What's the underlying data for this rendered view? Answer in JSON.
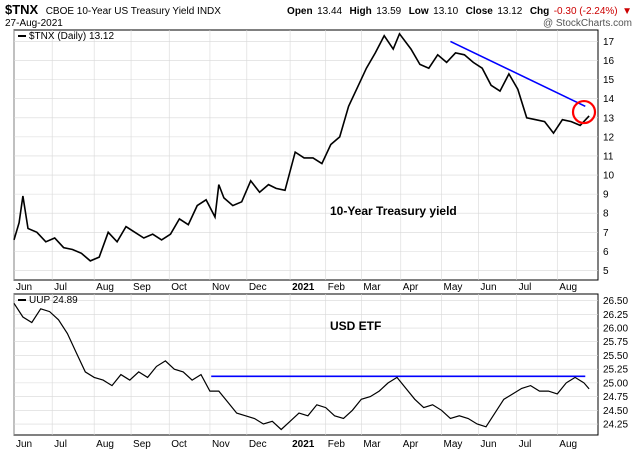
{
  "header": {
    "symbol": "$TNX",
    "name": "CBOE 10-Year US Treasury Yield INDX",
    "date": "27-Aug-2021",
    "watermark": "@ StockCharts.com",
    "open_label": "Open",
    "open_value": "13.44",
    "high_label": "High",
    "high_value": "13.59",
    "low_label": "Low",
    "low_value": "13.10",
    "close_label": "Close",
    "close_value": "13.12",
    "chg_label": "Chg",
    "chg_value": "-0.30 (-2.24%)",
    "chg_arrow": "▼",
    "chg_color": "#cc0000"
  },
  "chart_data": [
    {
      "type": "line",
      "legend": "$TNX (Daily) 13.12",
      "annotation": "10-Year Treasury yield",
      "x_ticks": [
        "Jun",
        "Jul",
        "Aug",
        "Sep",
        "Oct",
        "Nov",
        "Dec",
        "2021",
        "Feb",
        "Mar",
        "Apr",
        "May",
        "Jun",
        "Jul",
        "Aug"
      ],
      "y_ticks": [
        5,
        6,
        7,
        8,
        9,
        10,
        11,
        12,
        13,
        14,
        15,
        16,
        17
      ],
      "ylim": [
        4.5,
        17.6
      ],
      "series": [
        {
          "color": "#000000",
          "x": [
            "2020-06-01",
            "2020-06-05",
            "2020-06-08",
            "2020-06-12",
            "2020-06-19",
            "2020-06-26",
            "2020-07-03",
            "2020-07-10",
            "2020-07-17",
            "2020-07-24",
            "2020-07-31",
            "2020-08-07",
            "2020-08-14",
            "2020-08-21",
            "2020-08-28",
            "2020-09-04",
            "2020-09-11",
            "2020-09-18",
            "2020-09-25",
            "2020-10-02",
            "2020-10-09",
            "2020-10-16",
            "2020-10-23",
            "2020-10-30",
            "2020-11-06",
            "2020-11-09",
            "2020-11-13",
            "2020-11-20",
            "2020-11-27",
            "2020-12-04",
            "2020-12-11",
            "2020-12-18",
            "2020-12-24",
            "2020-12-31",
            "2021-01-08",
            "2021-01-15",
            "2021-01-22",
            "2021-01-29",
            "2021-02-05",
            "2021-02-12",
            "2021-02-19",
            "2021-02-26",
            "2021-03-05",
            "2021-03-12",
            "2021-03-19",
            "2021-03-26",
            "2021-03-31",
            "2021-04-09",
            "2021-04-16",
            "2021-04-23",
            "2021-04-30",
            "2021-05-07",
            "2021-05-14",
            "2021-05-21",
            "2021-05-28",
            "2021-06-04",
            "2021-06-11",
            "2021-06-18",
            "2021-06-25",
            "2021-07-02",
            "2021-07-09",
            "2021-07-16",
            "2021-07-23",
            "2021-07-30",
            "2021-08-06",
            "2021-08-13",
            "2021-08-20",
            "2021-08-27"
          ],
          "y": [
            6.6,
            7.5,
            8.9,
            7.2,
            7.0,
            6.5,
            6.7,
            6.2,
            6.1,
            5.9,
            5.5,
            5.7,
            7.0,
            6.5,
            7.3,
            7.0,
            6.7,
            6.9,
            6.6,
            6.9,
            7.7,
            7.4,
            8.4,
            8.7,
            7.8,
            9.5,
            8.8,
            8.4,
            8.6,
            9.7,
            9.1,
            9.5,
            9.3,
            9.2,
            11.2,
            10.9,
            10.9,
            10.6,
            11.6,
            12.0,
            13.6,
            14.6,
            15.6,
            16.4,
            17.3,
            16.6,
            17.4,
            16.6,
            15.8,
            15.6,
            16.3,
            15.9,
            16.4,
            16.3,
            15.9,
            15.6,
            14.7,
            14.4,
            15.3,
            14.5,
            13.0,
            12.9,
            12.8,
            12.2,
            12.9,
            12.8,
            12.6,
            13.1
          ]
        }
      ],
      "trendline": {
        "color": "#0000ff",
        "x": [
          "2021-05-10",
          "2021-08-24"
        ],
        "y": [
          17.0,
          13.6
        ]
      },
      "highlight": {
        "color": "#ff0000",
        "x": "2021-08-23",
        "y": 13.3
      }
    },
    {
      "type": "line",
      "legend": "UUP 24.89",
      "annotation": "USD ETF",
      "x_ticks": [
        "Jun",
        "Jul",
        "Aug",
        "Sep",
        "Oct",
        "Nov",
        "Dec",
        "2021",
        "Feb",
        "Mar",
        "Apr",
        "May",
        "Jun",
        "Jul",
        "Aug"
      ],
      "y_ticks": [
        "24.25",
        "24.50",
        "24.75",
        "25.00",
        "25.25",
        "25.50",
        "25.75",
        "26.00",
        "26.25",
        "26.50"
      ],
      "ylim": [
        24.05,
        26.62
      ],
      "series": [
        {
          "color": "#000000",
          "x": [
            "2020-06-01",
            "2020-06-08",
            "2020-06-15",
            "2020-06-22",
            "2020-06-29",
            "2020-07-06",
            "2020-07-13",
            "2020-07-20",
            "2020-07-27",
            "2020-08-03",
            "2020-08-10",
            "2020-08-17",
            "2020-08-24",
            "2020-08-31",
            "2020-09-07",
            "2020-09-14",
            "2020-09-21",
            "2020-09-28",
            "2020-10-05",
            "2020-10-12",
            "2020-10-19",
            "2020-10-26",
            "2020-11-02",
            "2020-11-09",
            "2020-11-16",
            "2020-11-23",
            "2020-11-30",
            "2020-12-07",
            "2020-12-14",
            "2020-12-21",
            "2020-12-28",
            "2021-01-04",
            "2021-01-11",
            "2021-01-18",
            "2021-01-25",
            "2021-02-01",
            "2021-02-08",
            "2021-02-15",
            "2021-02-22",
            "2021-03-01",
            "2021-03-08",
            "2021-03-15",
            "2021-03-22",
            "2021-03-29",
            "2021-04-05",
            "2021-04-12",
            "2021-04-19",
            "2021-04-26",
            "2021-05-03",
            "2021-05-10",
            "2021-05-17",
            "2021-05-24",
            "2021-05-31",
            "2021-06-07",
            "2021-06-14",
            "2021-06-21",
            "2021-06-28",
            "2021-07-05",
            "2021-07-12",
            "2021-07-19",
            "2021-07-26",
            "2021-08-02",
            "2021-08-09",
            "2021-08-16",
            "2021-08-23",
            "2021-08-27"
          ],
          "y": [
            26.45,
            26.2,
            26.1,
            26.35,
            26.3,
            26.15,
            25.9,
            25.55,
            25.2,
            25.1,
            25.05,
            24.95,
            25.15,
            25.05,
            25.2,
            25.1,
            25.3,
            25.4,
            25.25,
            25.2,
            25.05,
            25.15,
            24.85,
            24.85,
            24.65,
            24.45,
            24.4,
            24.35,
            24.25,
            24.3,
            24.15,
            24.3,
            24.45,
            24.4,
            24.6,
            24.55,
            24.4,
            24.35,
            24.5,
            24.7,
            24.75,
            24.85,
            25.0,
            25.1,
            24.9,
            24.7,
            24.55,
            24.6,
            24.5,
            24.35,
            24.4,
            24.35,
            24.25,
            24.2,
            24.45,
            24.7,
            24.8,
            24.9,
            24.95,
            24.85,
            24.85,
            24.8,
            25.0,
            25.1,
            25.0,
            24.89
          ]
        }
      ],
      "resistance": {
        "color": "#0000ff",
        "x": [
          "2020-11-03",
          "2021-08-24"
        ],
        "y": [
          25.12,
          25.12
        ]
      }
    }
  ]
}
